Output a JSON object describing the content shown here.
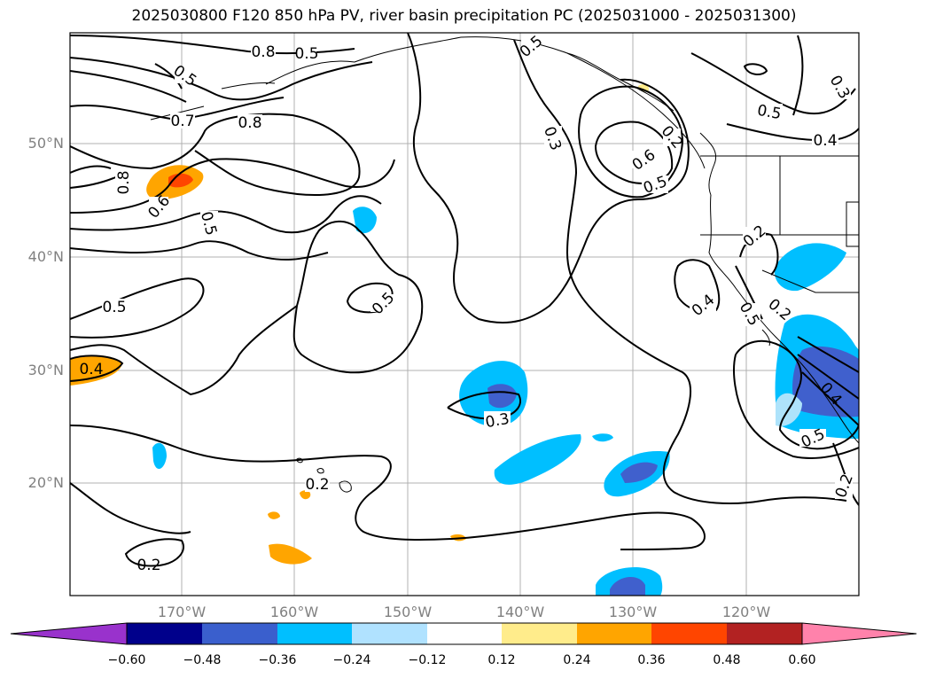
{
  "title": "2025030800 F120 850 hPa PV, river basin precipitation PC (2025031000 - 2025031300)",
  "map": {
    "lat_ticks": [
      "50°N",
      "40°N",
      "30°N",
      "20°N"
    ],
    "lon_ticks": [
      "170°W",
      "160°W",
      "150°W",
      "140°W",
      "130°W",
      "120°W"
    ],
    "contour_labels": [
      "0.8",
      "0.5",
      "0.7",
      "0.8",
      "0.8",
      "0.6",
      "0.5",
      "0.5",
      "0.4",
      "0.5",
      "0.2",
      "0.5",
      "0.3",
      "0.3",
      "0.5",
      "0.6",
      "0.5",
      "0.5",
      "0.4",
      "0.2",
      "0.4",
      "0.3",
      "0.2",
      "0.5",
      "0.2",
      "0.4",
      "0.5",
      "0.2"
    ],
    "colors": {
      "pos_1": "#ffeb8a",
      "pos_2": "#ffa500",
      "pos_3": "#ff4500",
      "neg_1": "#aee3fb",
      "neg_2": "#00bfff",
      "neg_3": "#4060cd"
    }
  },
  "colorbar": {
    "ticks": [
      "−0.60",
      "−0.48",
      "−0.36",
      "−0.24",
      "−0.12",
      "0.12",
      "0.24",
      "0.36",
      "0.48",
      "0.60"
    ],
    "colors": [
      "#9932cc",
      "#00008b",
      "#3a5fcd",
      "#00bfff",
      "#b0e2ff",
      "#ffffff",
      "#ffec8b",
      "#ffa500",
      "#ff4500",
      "#b22222",
      "#ff82ab"
    ]
  }
}
